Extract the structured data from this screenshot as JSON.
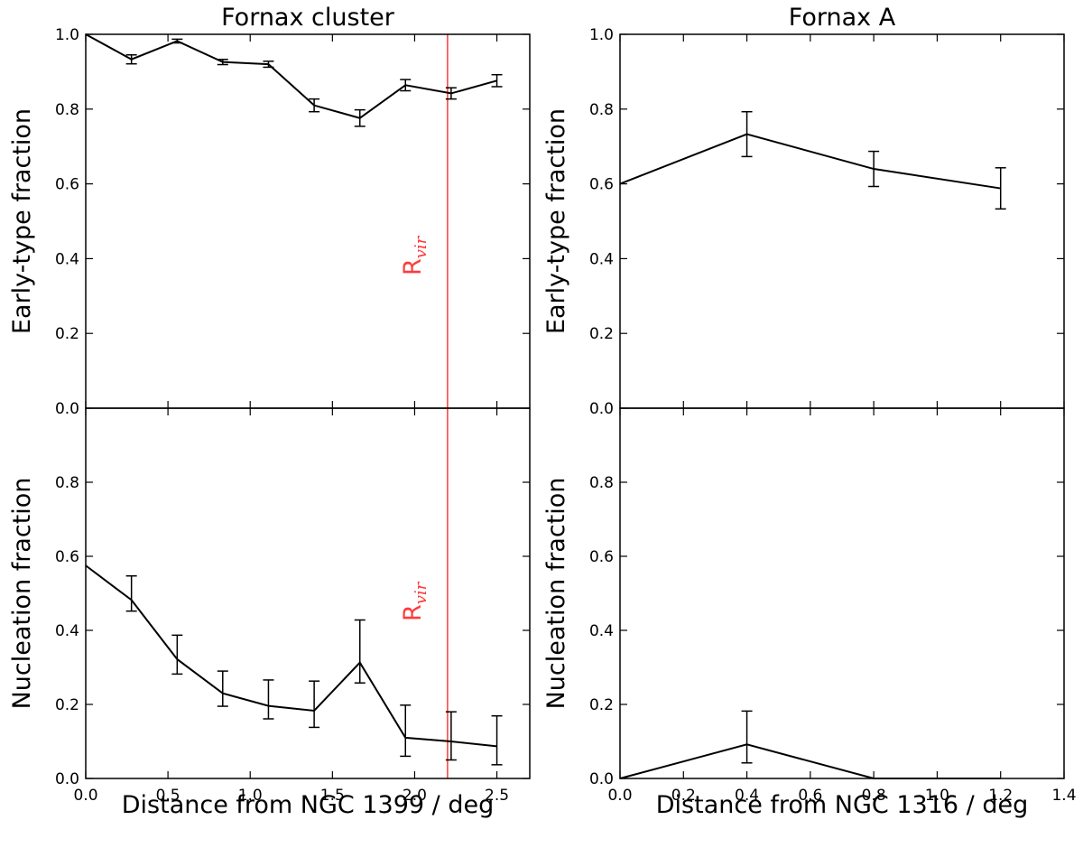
{
  "figure": {
    "annotation_color": "#ff3b3b",
    "line_color": "#000000"
  },
  "chart_data": [
    {
      "id": "cluster-early",
      "type": "line",
      "title": "Fornax cluster",
      "xlabel": "",
      "ylabel": "Early-type fraction",
      "xlim": [
        0,
        2.7
      ],
      "ylim": [
        0,
        1.0
      ],
      "xticks": [],
      "yticks": [
        "0.0",
        "0.2",
        "0.4",
        "0.6",
        "0.8",
        "1.0"
      ],
      "x": [
        0.0,
        0.278,
        0.556,
        0.833,
        1.111,
        1.389,
        1.667,
        1.944,
        2.222,
        2.5
      ],
      "y": [
        1.0,
        0.933,
        0.982,
        0.926,
        0.92,
        0.81,
        0.776,
        0.864,
        0.842,
        0.876
      ],
      "err": [
        0.0,
        0.012,
        0.005,
        0.007,
        0.008,
        0.017,
        0.022,
        0.015,
        0.015,
        0.016
      ],
      "vline": {
        "x": 2.2,
        "label": "R",
        "label_sub": "vir"
      }
    },
    {
      "id": "fornaxa-early",
      "type": "line",
      "title": "Fornax A",
      "xlabel": "",
      "ylabel": "Early-type fraction",
      "xlim": [
        0,
        1.4
      ],
      "ylim": [
        0,
        1.0
      ],
      "xticks": [],
      "yticks": [
        "0.0",
        "0.2",
        "0.4",
        "0.6",
        "0.8",
        "1.0"
      ],
      "x": [
        0.0,
        0.4,
        0.8,
        1.2
      ],
      "y": [
        0.6,
        0.733,
        0.64,
        0.588
      ],
      "err": [
        0.0,
        0.06,
        0.047,
        0.055
      ]
    },
    {
      "id": "cluster-nuc",
      "type": "line",
      "title": "",
      "xlabel": "Distance from NGC 1399 / deg",
      "ylabel": "Nucleation fraction",
      "xlim": [
        0,
        2.7
      ],
      "ylim": [
        0,
        1.0
      ],
      "xticks": [
        "0.0",
        "0.5",
        "1.0",
        "1.5",
        "2.0",
        "2.5"
      ],
      "yticks": [
        "0.0",
        "0.2",
        "0.4",
        "0.6",
        "0.8"
      ],
      "x": [
        0.0,
        0.278,
        0.556,
        0.833,
        1.111,
        1.389,
        1.667,
        1.944,
        2.222,
        2.5
      ],
      "y": [
        0.575,
        0.482,
        0.322,
        0.23,
        0.196,
        0.183,
        0.313,
        0.11,
        0.1,
        0.087
      ],
      "err_low": [
        0.0,
        0.03,
        0.04,
        0.035,
        0.035,
        0.045,
        0.055,
        0.05,
        0.05,
        0.05
      ],
      "err_high": [
        0.0,
        0.065,
        0.065,
        0.06,
        0.07,
        0.08,
        0.115,
        0.088,
        0.08,
        0.082
      ],
      "vline": {
        "x": 2.2,
        "label": "R",
        "label_sub": "vir"
      }
    },
    {
      "id": "fornaxa-nuc",
      "type": "line",
      "title": "",
      "xlabel": "Distance from NGC 1316 / deg",
      "ylabel": "Nucleation fraction",
      "xlim": [
        0,
        1.4
      ],
      "ylim": [
        0,
        1.0
      ],
      "xticks": [
        "0.0",
        "0.2",
        "0.4",
        "0.6",
        "0.8",
        "1.0",
        "1.2",
        "1.4"
      ],
      "yticks": [
        "0.0",
        "0.2",
        "0.4",
        "0.6",
        "0.8"
      ],
      "x": [
        0.0,
        0.4,
        0.8,
        1.2
      ],
      "y": [
        0.0,
        0.092,
        0.0,
        0.0
      ],
      "err_low": [
        0.0,
        0.05,
        0.0,
        0.0
      ],
      "err_high": [
        0.0,
        0.09,
        0.0,
        0.0
      ]
    }
  ]
}
